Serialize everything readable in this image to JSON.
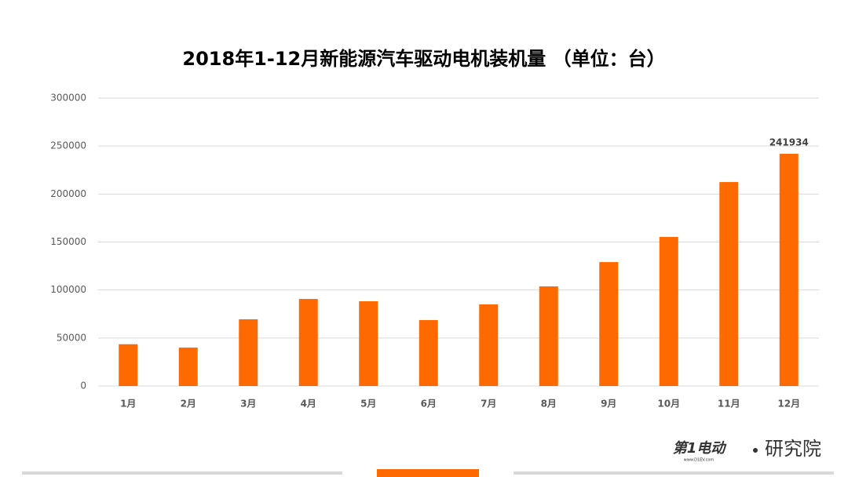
{
  "chart_data": {
    "type": "bar",
    "title": "2018年1-12月新能源汽车驱动电机装机量 （单位：台）",
    "categories": [
      "1月",
      "2月",
      "3月",
      "4月",
      "5月",
      "6月",
      "7月",
      "8月",
      "9月",
      "10月",
      "11月",
      "12月"
    ],
    "values": [
      43500,
      40000,
      69500,
      90700,
      88300,
      68700,
      85000,
      103800,
      129100,
      155300,
      212500,
      241934
    ],
    "value_labels": [
      null,
      null,
      null,
      null,
      null,
      null,
      null,
      null,
      null,
      null,
      null,
      "241934"
    ],
    "color": "#ff6a00",
    "ylim": [
      0,
      300000
    ],
    "yticks": [
      0,
      50000,
      100000,
      150000,
      200000,
      250000,
      300000
    ],
    "grid": true
  },
  "logo": {
    "brand": "第1电动",
    "site": "www.D1EV.com",
    "suffix": "研究院"
  }
}
